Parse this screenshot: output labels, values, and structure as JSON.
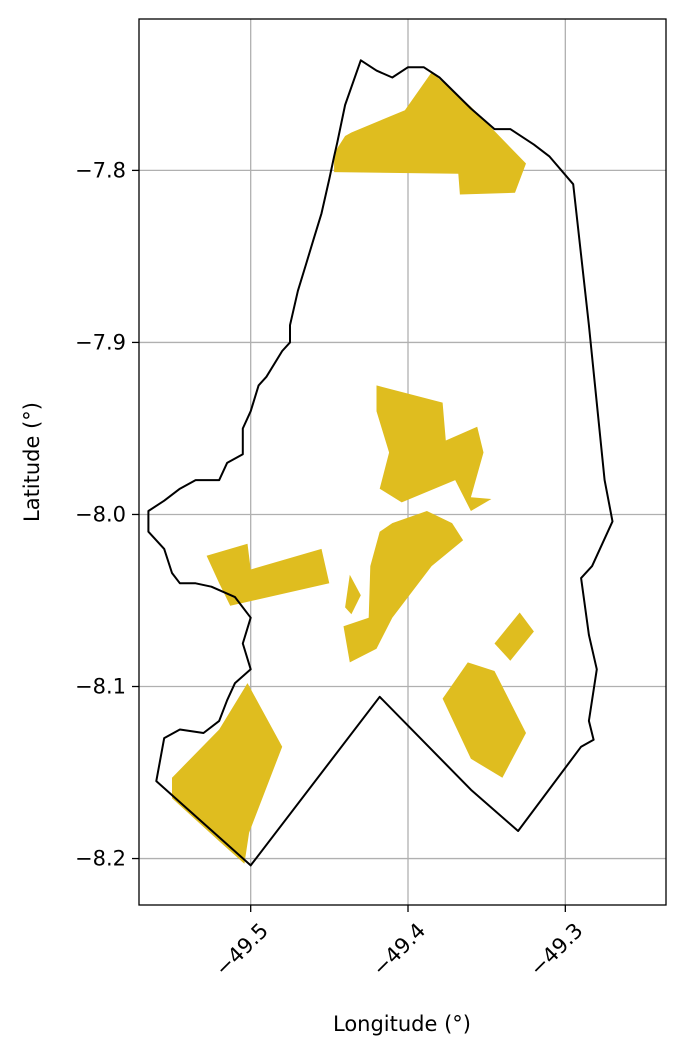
{
  "map": {
    "x_axis": {
      "label": "Longitude (°)",
      "ticks": [
        -49.5,
        -49.4,
        -49.3
      ],
      "tick_labels": [
        "−49.5",
        "−49.4",
        "−49.3"
      ],
      "range": [
        -49.571,
        -49.236
      ]
    },
    "y_axis": {
      "label": "Latitude (°)",
      "ticks": [
        -7.8,
        -7.9,
        -8.0,
        -8.1,
        -8.2
      ],
      "tick_labels": [
        "−7.8",
        "−7.9",
        "−8.0",
        "−8.1",
        "−8.2"
      ],
      "range": [
        -8.227,
        -7.712
      ]
    },
    "grid": true,
    "colors": {
      "fill": "#dfbd1f",
      "outline": "#000000",
      "grid": "#b0b0b0"
    },
    "boundary": [
      [
        -49.43,
        -7.736
      ],
      [
        -49.42,
        -7.742
      ],
      [
        -49.41,
        -7.746
      ],
      [
        -49.4,
        -7.74
      ],
      [
        -49.39,
        -7.74
      ],
      [
        -49.38,
        -7.746
      ],
      [
        -49.36,
        -7.764
      ],
      [
        -49.345,
        -7.776
      ],
      [
        -49.335,
        -7.776
      ],
      [
        -49.32,
        -7.785
      ],
      [
        -49.31,
        -7.792
      ],
      [
        -49.295,
        -7.808
      ],
      [
        -49.285,
        -7.89
      ],
      [
        -49.275,
        -7.98
      ],
      [
        -49.27,
        -8.004
      ],
      [
        -49.283,
        -8.03
      ],
      [
        -49.29,
        -8.037
      ],
      [
        -49.285,
        -8.07
      ],
      [
        -49.28,
        -8.09
      ],
      [
        -49.285,
        -8.12
      ],
      [
        -49.282,
        -8.131
      ],
      [
        -49.29,
        -8.135
      ],
      [
        -49.33,
        -8.184
      ],
      [
        -49.36,
        -8.16
      ],
      [
        -49.418,
        -8.106
      ],
      [
        -49.5,
        -8.204
      ],
      [
        -49.56,
        -8.155
      ],
      [
        -49.555,
        -8.13
      ],
      [
        -49.545,
        -8.125
      ],
      [
        -49.53,
        -8.127
      ],
      [
        -49.52,
        -8.12
      ],
      [
        -49.515,
        -8.108
      ],
      [
        -49.51,
        -8.098
      ],
      [
        -49.5,
        -8.09
      ],
      [
        -49.505,
        -8.075
      ],
      [
        -49.5,
        -8.06
      ],
      [
        -49.51,
        -8.048
      ],
      [
        -49.525,
        -8.042
      ],
      [
        -49.535,
        -8.04
      ],
      [
        -49.545,
        -8.04
      ],
      [
        -49.55,
        -8.034
      ],
      [
        -49.555,
        -8.02
      ],
      [
        -49.565,
        -8.01
      ],
      [
        -49.565,
        -7.998
      ],
      [
        -49.555,
        -7.992
      ],
      [
        -49.545,
        -7.985
      ],
      [
        -49.535,
        -7.98
      ],
      [
        -49.52,
        -7.98
      ],
      [
        -49.515,
        -7.97
      ],
      [
        -49.505,
        -7.965
      ],
      [
        -49.505,
        -7.95
      ],
      [
        -49.5,
        -7.94
      ],
      [
        -49.495,
        -7.925
      ],
      [
        -49.49,
        -7.92
      ],
      [
        -49.48,
        -7.905
      ],
      [
        -49.475,
        -7.9
      ],
      [
        -49.475,
        -7.89
      ],
      [
        -49.47,
        -7.87
      ],
      [
        -49.465,
        -7.855
      ],
      [
        -49.46,
        -7.84
      ],
      [
        -49.455,
        -7.825
      ],
      [
        -49.45,
        -7.805
      ],
      [
        -49.447,
        -7.792
      ],
      [
        -49.445,
        -7.784
      ],
      [
        -49.44,
        -7.762
      ],
      [
        -49.43,
        -7.736
      ]
    ],
    "areas": [
      [
        [
          -49.436,
          -7.778
        ],
        [
          -49.402,
          -7.765
        ],
        [
          -49.385,
          -7.743
        ],
        [
          -49.36,
          -7.763
        ],
        [
          -49.325,
          -7.796
        ],
        [
          -49.332,
          -7.813
        ],
        [
          -49.367,
          -7.814
        ],
        [
          -49.368,
          -7.802
        ],
        [
          -49.447,
          -7.801
        ],
        [
          -49.447,
          -7.79
        ],
        [
          -49.44,
          -7.78
        ]
      ],
      [
        [
          -49.42,
          -7.925
        ],
        [
          -49.378,
          -7.935
        ],
        [
          -49.376,
          -7.957
        ],
        [
          -49.356,
          -7.949
        ],
        [
          -49.352,
          -7.964
        ],
        [
          -49.36,
          -7.99
        ],
        [
          -49.347,
          -7.991
        ],
        [
          -49.36,
          -7.998
        ],
        [
          -49.37,
          -7.98
        ],
        [
          -49.404,
          -7.993
        ],
        [
          -49.418,
          -7.985
        ],
        [
          -49.412,
          -7.964
        ],
        [
          -49.42,
          -7.94
        ]
      ],
      [
        [
          -49.502,
          -8.017
        ],
        [
          -49.528,
          -8.024
        ],
        [
          -49.52,
          -8.04
        ],
        [
          -49.513,
          -8.053
        ],
        [
          -49.45,
          -8.04
        ],
        [
          -49.455,
          -8.02
        ],
        [
          -49.5,
          -8.032
        ],
        [
          -49.502,
          -8.017
        ]
      ],
      [
        [
          -49.41,
          -8.005
        ],
        [
          -49.388,
          -7.998
        ],
        [
          -49.372,
          -8.005
        ],
        [
          -49.365,
          -8.015
        ],
        [
          -49.385,
          -8.03
        ],
        [
          -49.4,
          -8.048
        ],
        [
          -49.41,
          -8.06
        ],
        [
          -49.42,
          -8.078
        ],
        [
          -49.437,
          -8.086
        ],
        [
          -49.441,
          -8.065
        ],
        [
          -49.425,
          -8.06
        ],
        [
          -49.424,
          -8.03
        ],
        [
          -49.418,
          -8.01
        ],
        [
          -49.41,
          -8.005
        ]
      ],
      [
        [
          -49.437,
          -8.035
        ],
        [
          -49.43,
          -8.047
        ],
        [
          -49.436,
          -8.058
        ],
        [
          -49.44,
          -8.054
        ]
      ],
      [
        [
          -49.345,
          -8.091
        ],
        [
          -49.325,
          -8.127
        ],
        [
          -49.34,
          -8.153
        ],
        [
          -49.36,
          -8.142
        ],
        [
          -49.378,
          -8.107
        ],
        [
          -49.362,
          -8.086
        ],
        [
          -49.345,
          -8.091
        ]
      ],
      [
        [
          -49.345,
          -8.075
        ],
        [
          -49.335,
          -8.085
        ],
        [
          -49.32,
          -8.068
        ],
        [
          -49.329,
          -8.057
        ],
        [
          -49.345,
          -8.075
        ]
      ],
      [
        [
          -49.55,
          -8.153
        ],
        [
          -49.52,
          -8.125
        ],
        [
          -49.502,
          -8.098
        ],
        [
          -49.48,
          -8.135
        ],
        [
          -49.501,
          -8.185
        ],
        [
          -49.504,
          -8.203
        ],
        [
          -49.52,
          -8.19
        ],
        [
          -49.55,
          -8.165
        ]
      ]
    ]
  }
}
